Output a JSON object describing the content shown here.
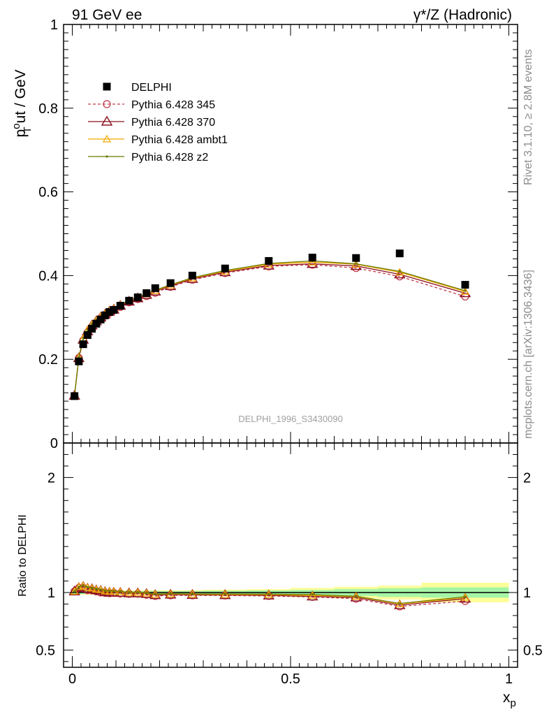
{
  "header": {
    "left": "91 GeV ee",
    "right_prefix": "γ*/Z",
    "right_suffix": " (Hadronic)"
  },
  "side_notes": {
    "rivet": "Rivet 3.1.10, ≥ 2.8M events",
    "mcplots": "mcplots.cern.ch [arXiv:1306.3436]"
  },
  "colors": {
    "DELPHI": "#000000",
    "Pythia 6.428 345": "#c0394b",
    "Pythia 6.428 370": "#8b1020",
    "Pythia 6.428 ambt1": "#f0a800",
    "Pythia 6.428 z2": "#6b7a00",
    "band_inner": "#a6f5a6",
    "band_outer": "#fdfd99"
  },
  "chart_data": [
    {
      "type": "line",
      "name": "main",
      "ylabel_parts": [
        "p",
        "o",
        "ut / GeV",
        "T"
      ],
      "xlim": [
        -0.02,
        1.02
      ],
      "ylim": [
        0,
        1
      ],
      "y_ticks": [
        "0",
        "0.2",
        "0.4",
        "0.6",
        "0.8",
        "1"
      ],
      "annotation": "DELPHI_1996_S3430090",
      "legend_position": "top-left",
      "x": [
        0.005,
        0.015,
        0.025,
        0.035,
        0.045,
        0.055,
        0.065,
        0.075,
        0.085,
        0.095,
        0.11,
        0.13,
        0.15,
        0.17,
        0.19,
        0.225,
        0.275,
        0.35,
        0.45,
        0.55,
        0.65,
        0.75,
        0.9
      ],
      "series": [
        {
          "name": "DELPHI",
          "marker": "square",
          "values": [
            0.112,
            0.195,
            0.236,
            0.258,
            0.273,
            0.285,
            0.295,
            0.305,
            0.313,
            0.318,
            0.328,
            0.34,
            0.348,
            0.358,
            0.37,
            0.382,
            0.4,
            0.417,
            0.435,
            0.443,
            0.442,
            0.453,
            0.378
          ]
        },
        {
          "name": "Pythia 6.428 345",
          "marker": "circle",
          "dashed": true,
          "values": [
            0.113,
            0.203,
            0.245,
            0.264,
            0.278,
            0.288,
            0.298,
            0.304,
            0.311,
            0.317,
            0.325,
            0.336,
            0.344,
            0.351,
            0.359,
            0.373,
            0.39,
            0.406,
            0.422,
            0.426,
            0.418,
            0.398,
            0.35
          ]
        },
        {
          "name": "Pythia 6.428 370",
          "marker": "triangle",
          "values": [
            0.113,
            0.203,
            0.247,
            0.267,
            0.281,
            0.291,
            0.3,
            0.307,
            0.314,
            0.319,
            0.328,
            0.338,
            0.346,
            0.354,
            0.362,
            0.375,
            0.392,
            0.408,
            0.424,
            0.428,
            0.423,
            0.403,
            0.358
          ]
        },
        {
          "name": "Pythia 6.428 ambt1",
          "marker": "triangle-small",
          "values": [
            0.113,
            0.205,
            0.25,
            0.27,
            0.283,
            0.293,
            0.302,
            0.309,
            0.316,
            0.321,
            0.33,
            0.34,
            0.348,
            0.356,
            0.364,
            0.377,
            0.394,
            0.41,
            0.427,
            0.432,
            0.427,
            0.408,
            0.362
          ]
        },
        {
          "name": "Pythia 6.428 z2",
          "marker": "dot",
          "values": [
            0.113,
            0.205,
            0.25,
            0.27,
            0.284,
            0.294,
            0.303,
            0.31,
            0.317,
            0.322,
            0.331,
            0.341,
            0.349,
            0.357,
            0.365,
            0.378,
            0.395,
            0.412,
            0.429,
            0.435,
            0.428,
            0.41,
            0.364
          ]
        }
      ]
    },
    {
      "type": "line",
      "name": "ratio",
      "ylabel": "Ratio to DELPHI",
      "xlabel_parts": [
        "x",
        "p"
      ],
      "xlim": [
        -0.02,
        1.02
      ],
      "ylim": [
        0.35,
        2.3
      ],
      "x_ticks": [
        "0",
        "0.5",
        "1"
      ],
      "y_ticks": [
        "0.5",
        "1",
        "2"
      ],
      "x": [
        0.005,
        0.015,
        0.025,
        0.035,
        0.045,
        0.055,
        0.065,
        0.075,
        0.085,
        0.095,
        0.11,
        0.13,
        0.15,
        0.17,
        0.19,
        0.225,
        0.275,
        0.35,
        0.45,
        0.55,
        0.65,
        0.75,
        0.9
      ],
      "band": {
        "edges": [
          0.0,
          0.2,
          0.3,
          0.4,
          0.5,
          0.6,
          0.7,
          0.8,
          1.0
        ],
        "inner": [
          0.012,
          0.012,
          0.015,
          0.018,
          0.022,
          0.03,
          0.038,
          0.045,
          0.05
        ],
        "outer": [
          0.02,
          0.02,
          0.025,
          0.03,
          0.04,
          0.05,
          0.06,
          0.085,
          0.085
        ]
      },
      "series": [
        {
          "name": "Pythia 6.428 345",
          "marker": "circle",
          "dashed": true,
          "values": [
            1.01,
            1.04,
            1.04,
            1.02,
            1.02,
            1.01,
            1.0,
            0.997,
            0.994,
            0.997,
            0.991,
            0.988,
            0.989,
            0.98,
            0.97,
            0.976,
            0.975,
            0.974,
            0.97,
            0.962,
            0.946,
            0.879,
            0.926
          ]
        },
        {
          "name": "Pythia 6.428 370",
          "marker": "triangle",
          "values": [
            1.01,
            1.04,
            1.05,
            1.035,
            1.03,
            1.02,
            1.015,
            1.005,
            1.0,
            1.0,
            0.998,
            0.994,
            0.994,
            0.988,
            0.978,
            0.982,
            0.98,
            0.978,
            0.975,
            0.966,
            0.957,
            0.89,
            0.947
          ]
        },
        {
          "name": "Pythia 6.428 ambt1",
          "marker": "triangle-small",
          "values": [
            1.01,
            1.05,
            1.06,
            1.045,
            1.037,
            1.028,
            1.024,
            1.013,
            1.01,
            1.01,
            1.006,
            1.0,
            1.0,
            0.994,
            0.984,
            0.987,
            0.985,
            0.983,
            0.982,
            0.975,
            0.966,
            0.9,
            0.958
          ]
        },
        {
          "name": "Pythia 6.428 z2",
          "marker": "dot",
          "values": [
            1.01,
            1.05,
            1.06,
            1.047,
            1.04,
            1.032,
            1.027,
            1.016,
            1.013,
            1.013,
            1.009,
            1.003,
            1.003,
            0.997,
            0.986,
            0.99,
            0.988,
            0.988,
            0.986,
            0.982,
            0.968,
            0.905,
            0.963
          ]
        }
      ]
    }
  ]
}
